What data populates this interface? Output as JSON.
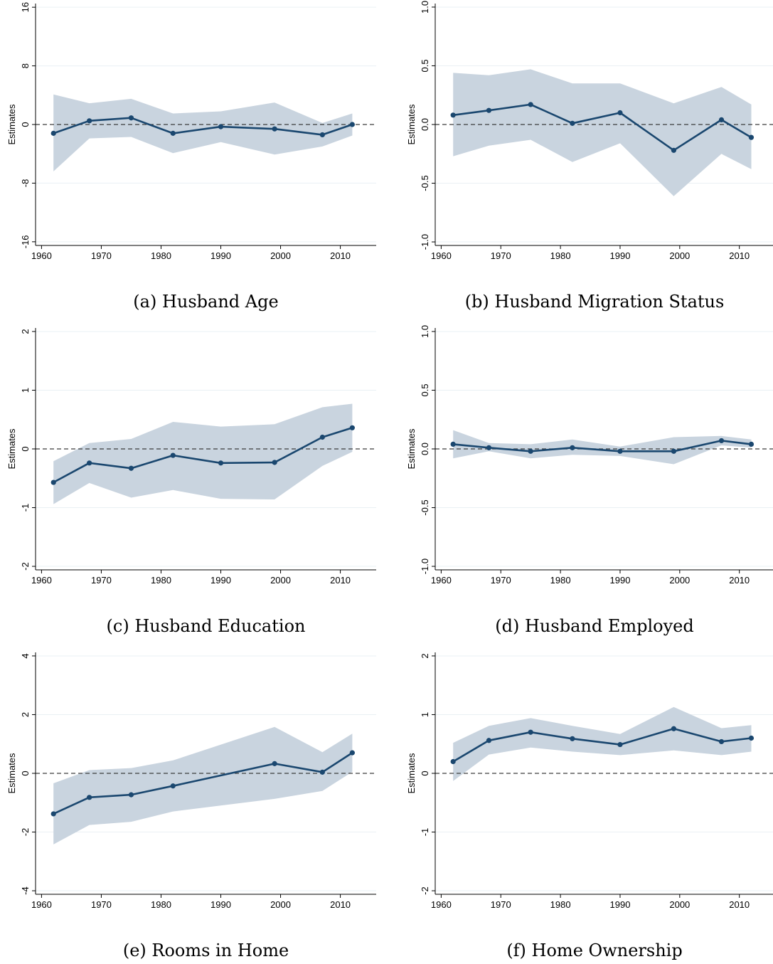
{
  "chart_data": [
    {
      "type": "line",
      "caption": "(a) Husband Age",
      "ylabel": "Estimates",
      "xticks": [
        1960,
        1970,
        1980,
        1990,
        2000,
        2010
      ],
      "xlim": [
        1959,
        2016
      ],
      "yticks": [
        -16,
        -8,
        0,
        8,
        16
      ],
      "ylim": [
        -16.5,
        16.5
      ],
      "grid": true,
      "zero_line": true,
      "x": [
        1962,
        1968,
        1975,
        1982,
        1990,
        1999,
        2007,
        2012
      ],
      "series": [
        {
          "values": [
            -1.2,
            0.5,
            0.9,
            -1.2,
            -0.3,
            -0.6,
            -1.4,
            0.0
          ]
        },
        {
          "values": [
            -6.4,
            -1.9,
            -1.7,
            -3.9,
            -2.4,
            -4.1,
            -3.0,
            -1.5
          ]
        },
        {
          "values": [
            4.1,
            2.9,
            3.5,
            1.5,
            1.8,
            3.0,
            0.2,
            1.5
          ]
        }
      ]
    },
    {
      "type": "line",
      "caption": "(b) Husband Migration Status",
      "ylabel": "Estimates",
      "xticks": [
        1960,
        1970,
        1980,
        1990,
        2000,
        2010
      ],
      "xlim": [
        1959,
        2016
      ],
      "yticks": [
        -1.0,
        -0.5,
        0.0,
        0.5,
        1.0
      ],
      "ytick_labels": [
        "-1.0",
        "-0.5",
        "0.0",
        "0.5",
        "1.0"
      ],
      "ylim": [
        -1.03,
        1.03
      ],
      "grid": true,
      "zero_line": true,
      "x": [
        1962,
        1968,
        1975,
        1982,
        1990,
        1999,
        2007,
        2012
      ],
      "series": [
        {
          "values": [
            0.08,
            0.12,
            0.17,
            0.01,
            0.1,
            -0.22,
            0.04,
            -0.11
          ]
        },
        {
          "values": [
            -0.27,
            -0.18,
            -0.13,
            -0.32,
            -0.16,
            -0.61,
            -0.25,
            -0.38
          ]
        },
        {
          "values": [
            0.44,
            0.42,
            0.47,
            0.35,
            0.35,
            0.18,
            0.32,
            0.17
          ]
        }
      ]
    },
    {
      "type": "line",
      "caption": "(c) Husband Education",
      "ylabel": "Estimates",
      "xticks": [
        1960,
        1970,
        1980,
        1990,
        2000,
        2010
      ],
      "xlim": [
        1959,
        2016
      ],
      "yticks": [
        -2,
        -1,
        0,
        1,
        2
      ],
      "ylim": [
        -2.06,
        2.06
      ],
      "grid": true,
      "zero_line": true,
      "x": [
        1962,
        1968,
        1975,
        1982,
        1990,
        1999,
        2007,
        2012
      ],
      "series": [
        {
          "values": [
            -0.57,
            -0.24,
            -0.33,
            -0.11,
            -0.24,
            -0.23,
            0.2,
            0.36
          ]
        },
        {
          "values": [
            -0.94,
            -0.58,
            -0.83,
            -0.7,
            -0.85,
            -0.86,
            -0.29,
            -0.05
          ]
        },
        {
          "values": [
            -0.21,
            0.1,
            0.17,
            0.46,
            0.38,
            0.42,
            0.71,
            0.77
          ]
        }
      ]
    },
    {
      "type": "line",
      "caption": "(d) Husband Employed",
      "ylabel": "Estimates",
      "xticks": [
        1960,
        1970,
        1980,
        1990,
        2000,
        2010
      ],
      "xlim": [
        1959,
        2016
      ],
      "yticks": [
        -1.0,
        -0.5,
        0.0,
        0.5,
        1.0
      ],
      "ytick_labels": [
        "-1.0",
        "-0.5",
        "0.0",
        "0.5",
        "1.0"
      ],
      "ylim": [
        -1.03,
        1.03
      ],
      "grid": true,
      "zero_line": true,
      "x": [
        1962,
        1968,
        1975,
        1982,
        1990,
        1999,
        2007,
        2012
      ],
      "series": [
        {
          "values": [
            0.04,
            0.01,
            -0.02,
            0.01,
            -0.02,
            -0.02,
            0.07,
            0.04
          ]
        },
        {
          "values": [
            -0.08,
            -0.02,
            -0.08,
            -0.05,
            -0.06,
            -0.13,
            0.03,
            0.01
          ]
        },
        {
          "values": [
            0.16,
            0.05,
            0.04,
            0.08,
            0.02,
            0.1,
            0.11,
            0.08
          ]
        }
      ]
    },
    {
      "type": "line",
      "caption": "(e) Rooms in Home",
      "ylabel": "Estimates",
      "xticks": [
        1960,
        1970,
        1980,
        1990,
        2000,
        2010
      ],
      "xlim": [
        1959,
        2016
      ],
      "yticks": [
        -4,
        -2,
        0,
        2,
        4
      ],
      "ylim": [
        -4.12,
        4.12
      ],
      "grid": true,
      "zero_line": true,
      "x": [
        1962,
        1968,
        1975,
        1982,
        1999,
        2007,
        2012
      ],
      "series": [
        {
          "values": [
            -1.38,
            -0.82,
            -0.73,
            -0.43,
            0.33,
            0.04,
            0.7
          ]
        },
        {
          "values": [
            -2.42,
            -1.76,
            -1.65,
            -1.3,
            -0.87,
            -0.6,
            0.05
          ]
        },
        {
          "values": [
            -0.34,
            0.11,
            0.18,
            0.44,
            1.58,
            0.72,
            1.35
          ]
        }
      ]
    },
    {
      "type": "line",
      "caption": "(f) Home Ownership",
      "ylabel": "Estimates",
      "xticks": [
        1960,
        1970,
        1980,
        1990,
        2000,
        2010
      ],
      "xlim": [
        1959,
        2016
      ],
      "yticks": [
        -2,
        -1,
        0,
        1,
        2
      ],
      "ylim": [
        -2.06,
        2.06
      ],
      "grid": true,
      "zero_line": true,
      "x": [
        1962,
        1968,
        1975,
        1982,
        1990,
        1999,
        2007,
        2012
      ],
      "series": [
        {
          "values": [
            0.2,
            0.56,
            0.7,
            0.59,
            0.49,
            0.76,
            0.54,
            0.6
          ]
        },
        {
          "values": [
            -0.13,
            0.32,
            0.44,
            0.37,
            0.31,
            0.39,
            0.31,
            0.37
          ]
        },
        {
          "values": [
            0.52,
            0.81,
            0.94,
            0.81,
            0.67,
            1.13,
            0.77,
            0.82
          ]
        }
      ]
    }
  ],
  "colors": {
    "line": "#1a476f",
    "band": "#c9d4df",
    "grid": "#eaf0f4",
    "zero_line": "#3c3c3c",
    "axis": "#000000"
  }
}
